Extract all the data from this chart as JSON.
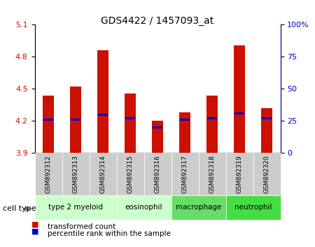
{
  "title": "GDS4422 / 1457093_at",
  "samples": [
    "GSM892312",
    "GSM892313",
    "GSM892314",
    "GSM892315",
    "GSM892316",
    "GSM892317",
    "GSM892318",
    "GSM892319",
    "GSM892320"
  ],
  "transformed_count": [
    4.44,
    4.52,
    4.86,
    4.46,
    4.2,
    4.28,
    4.44,
    4.91,
    4.32
  ],
  "percentile_rank": [
    26,
    26,
    30,
    27,
    20,
    26,
    27,
    31,
    27
  ],
  "y_min": 3.9,
  "y_max": 5.1,
  "y_ticks": [
    3.9,
    4.2,
    4.5,
    4.8,
    5.1
  ],
  "right_y_ticks": [
    0,
    25,
    50,
    75,
    100
  ],
  "groups": [
    {
      "label": "type 2 myeloid",
      "start": 0,
      "end": 2,
      "color": "#ccffcc"
    },
    {
      "label": "eosinophil",
      "start": 3,
      "end": 4,
      "color": "#ccffcc"
    },
    {
      "label": "macrophage",
      "start": 5,
      "end": 6,
      "color": "#66dd66"
    },
    {
      "label": "neutrophil",
      "start": 7,
      "end": 8,
      "color": "#44dd44"
    }
  ],
  "bar_color": "#cc1100",
  "blue_color": "#0000cc",
  "bar_width": 0.4,
  "bg_color": "#ffffff",
  "plot_bg": "#ffffff",
  "grid_color": "#000000",
  "left_axis_color": "#cc1100",
  "right_axis_color": "#0000cc",
  "legend_red_label": "transformed count",
  "legend_blue_label": "percentile rank within the sample",
  "cell_type_label": "cell type",
  "sample_bg": "#cccccc"
}
